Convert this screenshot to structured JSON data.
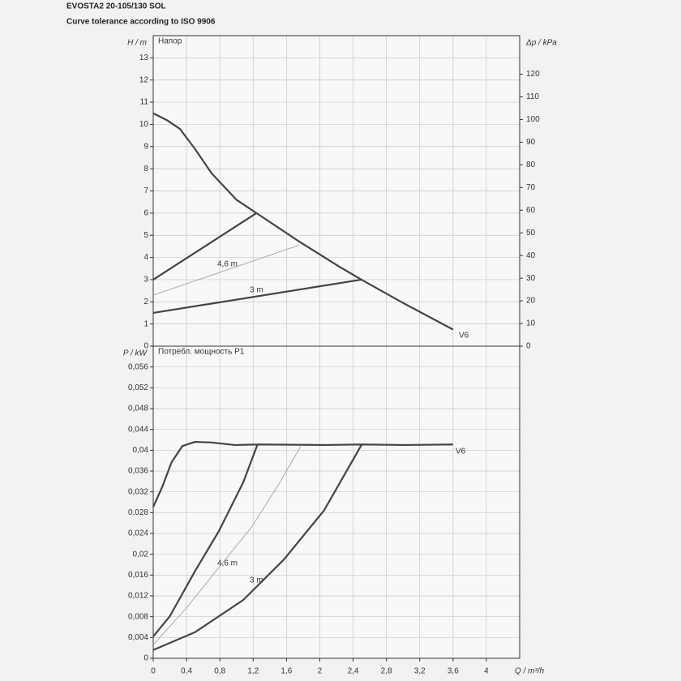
{
  "header": {
    "title": "EVOSTA2 20-105/130 SOL",
    "subtitle": "Curve tolerance according to ISO 9906"
  },
  "chart_data": [
    {
      "type": "line",
      "title": "Напор",
      "ylabel": "H / m",
      "y2label": "Δp / kPa",
      "xlim": [
        0,
        4.4
      ],
      "xticks": [
        0,
        0.4,
        0.8,
        1.2,
        1.6,
        2,
        2.4,
        2.8,
        3.2,
        3.6,
        4
      ],
      "ylim": [
        0,
        14
      ],
      "yticks": [
        0,
        1,
        2,
        3,
        4,
        5,
        6,
        7,
        8,
        9,
        10,
        11,
        12,
        13
      ],
      "y2lim": [
        0,
        137
      ],
      "y2ticks": [
        0,
        10,
        20,
        30,
        40,
        50,
        60,
        70,
        80,
        90,
        100,
        110,
        120
      ],
      "grid": true,
      "series": [
        {
          "name": "V6",
          "color": "#444444",
          "linewidth": 2.2,
          "x": [
            0,
            0.16,
            0.32,
            0.5,
            0.7,
            1.0,
            1.24,
            1.76,
            2.25,
            2.5,
            3.0,
            3.6
          ],
          "values": [
            10.5,
            10.2,
            9.8,
            8.9,
            7.8,
            6.6,
            6.0,
            4.7,
            3.55,
            3.0,
            1.95,
            0.75
          ]
        },
        {
          "color": "#444444",
          "linewidth": 2.2,
          "x": [
            0,
            1.24
          ],
          "values": [
            3.0,
            6.0
          ]
        },
        {
          "name": "4,6 m",
          "color": "#999999",
          "linewidth": 0.8,
          "x": [
            0,
            1.75
          ],
          "values": [
            2.3,
            4.55
          ]
        },
        {
          "name": "3 m",
          "color": "#444444",
          "linewidth": 2.2,
          "x": [
            0,
            2.5
          ],
          "values": [
            1.5,
            3.0
          ]
        }
      ]
    },
    {
      "type": "line",
      "title": "Потребл. мощность P1",
      "ylabel": "P / kW",
      "xlabel": "Q / m³/h",
      "xlim": [
        0,
        4.4
      ],
      "xticks": [
        0,
        {
          "value": 0.4,
          "label": "0,4"
        },
        {
          "value": 0.8,
          "label": "0,8"
        },
        {
          "value": 1.2,
          "label": "1,2"
        },
        {
          "value": 1.6,
          "label": "1,6"
        },
        2,
        {
          "value": 2.4,
          "label": "2,4"
        },
        {
          "value": 2.8,
          "label": "2,8"
        },
        {
          "value": 3.2,
          "label": "3,2"
        },
        {
          "value": 3.6,
          "label": "3,6"
        },
        4
      ],
      "ylim": [
        0,
        0.06
      ],
      "yticks": [
        0,
        {
          "value": 0.004,
          "label": "0,004"
        },
        {
          "value": 0.008,
          "label": "0,008"
        },
        {
          "value": 0.012,
          "label": "0,012"
        },
        {
          "value": 0.016,
          "label": "0,016"
        },
        {
          "value": 0.02,
          "label": "0,02"
        },
        {
          "value": 0.024,
          "label": "0,024"
        },
        {
          "value": 0.028,
          "label": "0,028"
        },
        {
          "value": 0.032,
          "label": "0,032"
        },
        {
          "value": 0.036,
          "label": "0,036"
        },
        {
          "value": 0.04,
          "label": "0,04"
        },
        {
          "value": 0.044,
          "label": "0,044"
        },
        {
          "value": 0.048,
          "label": "0,048"
        },
        {
          "value": 0.052,
          "label": "0,052"
        },
        {
          "value": 0.056,
          "label": "0,056"
        }
      ],
      "grid": true,
      "series": [
        {
          "name": "V6",
          "color": "#444444",
          "linewidth": 2.2,
          "x": [
            0,
            0.11,
            0.22,
            0.35,
            0.5,
            0.69,
            0.98,
            1.27,
            2.05,
            2.5,
            3.03,
            3.6
          ],
          "values": [
            0.0291,
            0.033,
            0.0377,
            0.0408,
            0.0416,
            0.0415,
            0.041,
            0.0411,
            0.041,
            0.0411,
            0.041,
            0.0411
          ]
        },
        {
          "color": "#444444",
          "linewidth": 2.2,
          "x": [
            0,
            0.2,
            0.5,
            0.79,
            1.08,
            1.25
          ],
          "values": [
            0.0042,
            0.0081,
            0.0167,
            0.0245,
            0.0338,
            0.041
          ]
        },
        {
          "name": "4,6 m",
          "color": "#999999",
          "linewidth": 0.8,
          "x": [
            0,
            0.4,
            0.79,
            1.18,
            1.52,
            1.78
          ],
          "values": [
            0.0026,
            0.0097,
            0.0175,
            0.0252,
            0.0338,
            0.041
          ]
        },
        {
          "name": "3 m",
          "color": "#444444",
          "linewidth": 2.2,
          "x": [
            0,
            0.5,
            1.08,
            1.57,
            2.05,
            2.5
          ],
          "values": [
            0.0016,
            0.005,
            0.0112,
            0.019,
            0.0284,
            0.041
          ]
        }
      ]
    }
  ]
}
